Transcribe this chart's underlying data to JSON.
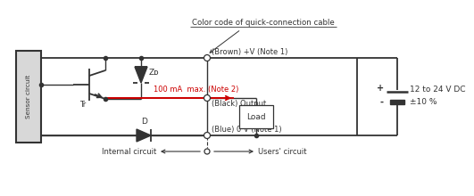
{
  "color_code_label": "Color code of quick-connection cable",
  "brown_label": "(Brown) +V (Note 1)",
  "black_label": "(Black) Output",
  "blue_label": "(Blue) 0 V (Note 1)",
  "current_label": "100 mA  max. (Note 2)",
  "voltage_label": "12 to 24 V DC",
  "tolerance_label": "±10 %",
  "sensor_label": "Sensor circuit",
  "tr_label": "Tr",
  "zd_label": "Zᴅ",
  "d_label": "D",
  "load_label": "Load",
  "internal_label": "Internal circuit",
  "users_label": "Users' circuit",
  "plus_label": "+",
  "minus_label": "-",
  "bg_color": "#ffffff",
  "line_color": "#333333",
  "red_color": "#cc0000",
  "sensor_fill": "#d8d8d8",
  "inner_box_fill": "#ffffff"
}
